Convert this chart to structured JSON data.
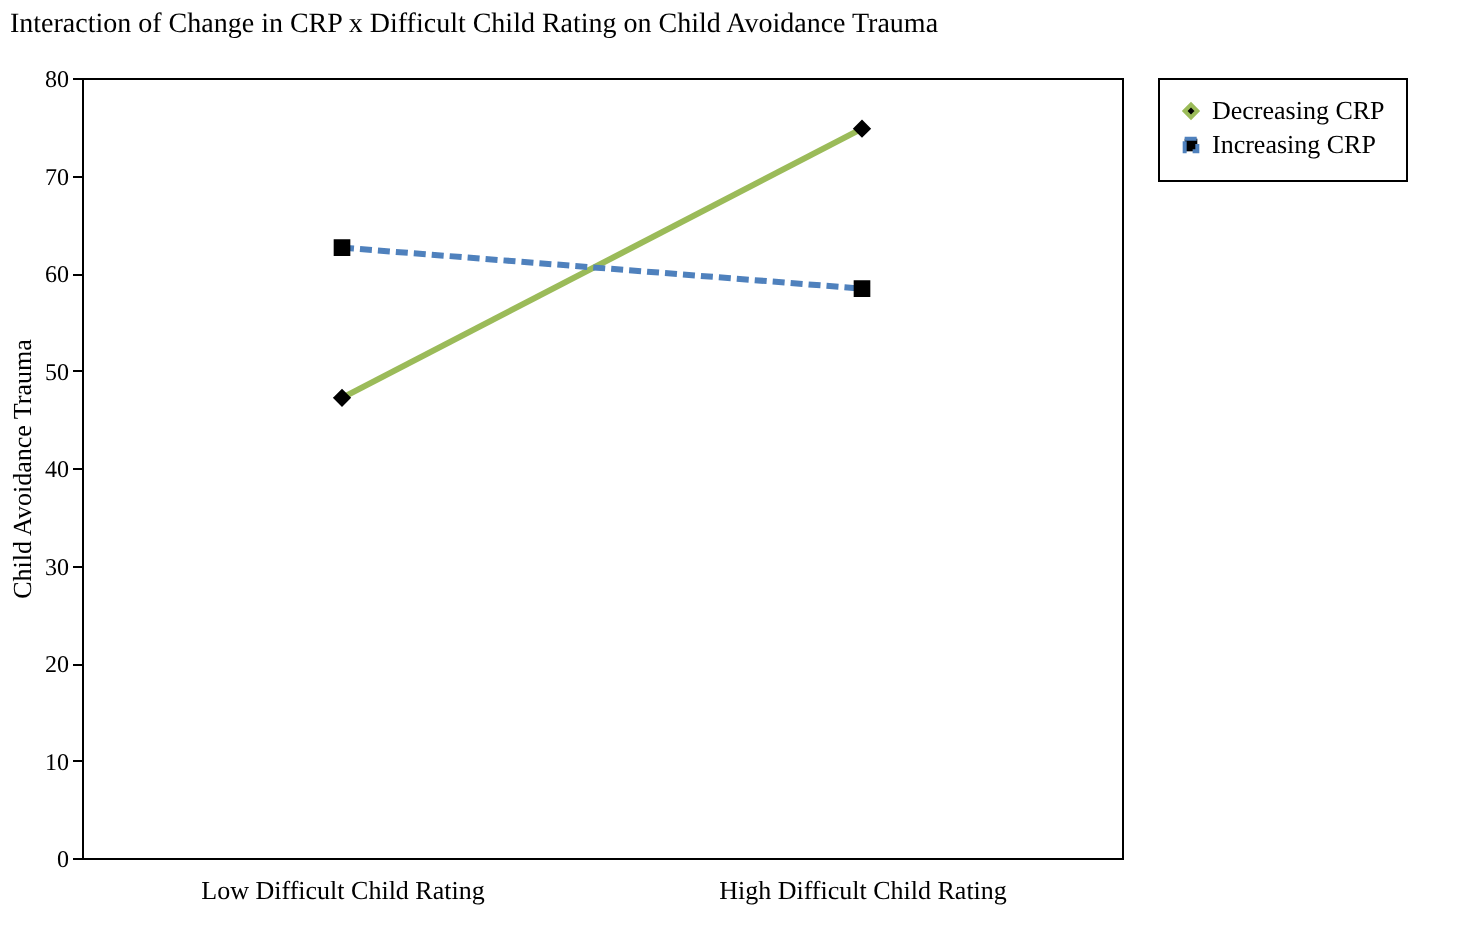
{
  "chart_data": {
    "type": "line",
    "title": "Interaction of Change in CRP x Difficult Child Rating on Child Avoidance Trauma",
    "ylabel": "Child Avoidance Trauma",
    "categories": [
      "Low Difficult Child Rating",
      "High Difficult Child Rating"
    ],
    "series": [
      {
        "name": "Decreasing CRP",
        "color": "#9bbb59",
        "values": [
          47.2,
          74.8
        ],
        "marker": "diamond",
        "line_style": "solid"
      },
      {
        "name": "Increasing CRP",
        "color": "#4f81bd",
        "values": [
          62.6,
          58.4
        ],
        "marker": "square",
        "line_style": "dashed"
      }
    ],
    "ylim": [
      0,
      80
    ],
    "yticks": [
      0,
      10,
      20,
      30,
      40,
      50,
      60,
      70,
      80
    ],
    "grid": false,
    "legend": "right"
  }
}
